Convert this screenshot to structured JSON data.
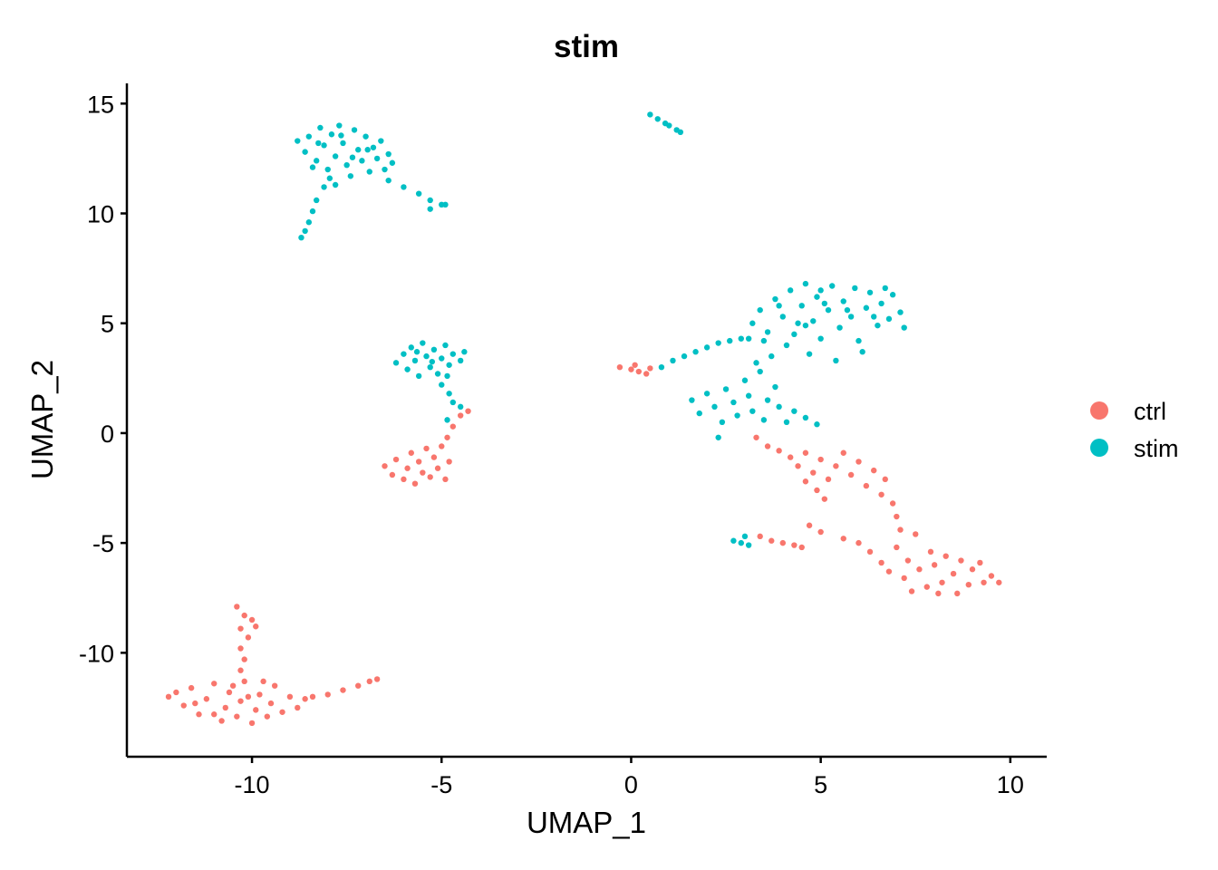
{
  "chart_data": {
    "type": "scatter",
    "title": "stim",
    "xlabel": "UMAP_1",
    "ylabel": "UMAP_2",
    "xlim": [
      -13.3,
      10.96
    ],
    "ylim": [
      -14.73,
      15.92
    ],
    "xticks": [
      -10,
      -5,
      0,
      5,
      10
    ],
    "yticks": [
      -10,
      -5,
      0,
      5,
      10,
      15
    ],
    "grid": false,
    "legend_position": "right",
    "series": [
      {
        "name": "ctrl",
        "color": "#F8766D",
        "points": [
          [
            -6.5,
            -1.5
          ],
          [
            -6.3,
            -1.9
          ],
          [
            -6.2,
            -1.2
          ],
          [
            -6.0,
            -2.1
          ],
          [
            -5.9,
            -1.6
          ],
          [
            -5.8,
            -0.9
          ],
          [
            -5.7,
            -2.3
          ],
          [
            -5.6,
            -1.3
          ],
          [
            -5.5,
            -1.8
          ],
          [
            -5.4,
            -0.7
          ],
          [
            -5.3,
            -2.0
          ],
          [
            -5.2,
            -1.1
          ],
          [
            -5.1,
            -1.6
          ],
          [
            -5.0,
            -0.6
          ],
          [
            -4.9,
            -2.1
          ],
          [
            -4.8,
            -1.3
          ],
          [
            -4.85,
            -0.2
          ],
          [
            -4.7,
            0.3
          ],
          [
            -4.5,
            0.8
          ],
          [
            -4.3,
            1.0
          ],
          [
            -0.3,
            3.0
          ],
          [
            0.0,
            2.9
          ],
          [
            0.2,
            2.8
          ],
          [
            0.4,
            2.7
          ],
          [
            0.1,
            3.1
          ],
          [
            0.5,
            2.95
          ],
          [
            3.3,
            -0.2
          ],
          [
            3.6,
            -0.6
          ],
          [
            3.9,
            -0.8
          ],
          [
            4.2,
            -1.1
          ],
          [
            4.4,
            -1.5
          ],
          [
            4.6,
            -0.9
          ],
          [
            4.8,
            -1.8
          ],
          [
            5.0,
            -1.2
          ],
          [
            5.2,
            -2.1
          ],
          [
            5.4,
            -1.5
          ],
          [
            5.6,
            -0.9
          ],
          [
            5.8,
            -1.9
          ],
          [
            6.0,
            -1.3
          ],
          [
            6.2,
            -2.4
          ],
          [
            6.4,
            -1.7
          ],
          [
            6.6,
            -2.8
          ],
          [
            6.7,
            -2.1
          ],
          [
            6.9,
            -3.2
          ],
          [
            5.1,
            -3.0
          ],
          [
            4.9,
            -2.6
          ],
          [
            4.6,
            -2.2
          ],
          [
            7.0,
            -3.8
          ],
          [
            7.1,
            -4.4
          ],
          [
            6.3,
            -5.4
          ],
          [
            6.6,
            -5.9
          ],
          [
            6.8,
            -6.3
          ],
          [
            7.0,
            -5.2
          ],
          [
            7.2,
            -6.6
          ],
          [
            7.3,
            -5.8
          ],
          [
            7.5,
            -4.6
          ],
          [
            7.6,
            -6.2
          ],
          [
            7.8,
            -7.0
          ],
          [
            7.9,
            -5.4
          ],
          [
            8.0,
            -6.0
          ],
          [
            8.2,
            -6.8
          ],
          [
            8.3,
            -5.6
          ],
          [
            8.5,
            -6.4
          ],
          [
            8.6,
            -7.3
          ],
          [
            8.7,
            -5.8
          ],
          [
            8.9,
            -6.9
          ],
          [
            9.0,
            -6.2
          ],
          [
            9.2,
            -5.9
          ],
          [
            9.3,
            -6.8
          ],
          [
            9.5,
            -6.5
          ],
          [
            9.7,
            -6.8
          ],
          [
            7.4,
            -7.2
          ],
          [
            8.1,
            -7.3
          ],
          [
            6.0,
            -5.0
          ],
          [
            5.6,
            -4.8
          ],
          [
            5.0,
            -4.5
          ],
          [
            4.7,
            -4.2
          ],
          [
            3.4,
            -4.7
          ],
          [
            3.7,
            -4.9
          ],
          [
            4.0,
            -5.0
          ],
          [
            4.3,
            -5.1
          ],
          [
            4.5,
            -5.2
          ],
          [
            -12.2,
            -12.0
          ],
          [
            -12.0,
            -11.8
          ],
          [
            -11.8,
            -12.4
          ],
          [
            -11.6,
            -11.6
          ],
          [
            -11.4,
            -12.8
          ],
          [
            -11.2,
            -12.1
          ],
          [
            -11.0,
            -11.4
          ],
          [
            -10.8,
            -13.1
          ],
          [
            -10.7,
            -12.5
          ],
          [
            -10.6,
            -11.8
          ],
          [
            -10.4,
            -12.9
          ],
          [
            -10.3,
            -12.2
          ],
          [
            -10.2,
            -11.3
          ],
          [
            -10.0,
            -13.2
          ],
          [
            -9.9,
            -12.6
          ],
          [
            -9.8,
            -11.9
          ],
          [
            -9.6,
            -12.9
          ],
          [
            -9.5,
            -12.3
          ],
          [
            -9.4,
            -11.5
          ],
          [
            -9.2,
            -12.7
          ],
          [
            -9.0,
            -12.0
          ],
          [
            -8.8,
            -12.5
          ],
          [
            -8.6,
            -12.1
          ],
          [
            -11.0,
            -12.8
          ],
          [
            -10.5,
            -11.5
          ],
          [
            -9.7,
            -11.3
          ],
          [
            -11.5,
            -12.3
          ],
          [
            -10.1,
            -12.0
          ],
          [
            -10.4,
            -7.9
          ],
          [
            -10.2,
            -8.3
          ],
          [
            -10.0,
            -8.5
          ],
          [
            -10.3,
            -8.9
          ],
          [
            -10.1,
            -9.3
          ],
          [
            -10.3,
            -9.8
          ],
          [
            -10.2,
            -10.3
          ],
          [
            -10.3,
            -10.8
          ],
          [
            -9.9,
            -8.8
          ],
          [
            -8.4,
            -12.0
          ],
          [
            -8.0,
            -11.9
          ],
          [
            -7.6,
            -11.7
          ],
          [
            -7.2,
            -11.5
          ],
          [
            -6.9,
            -11.3
          ],
          [
            -6.7,
            -11.2
          ]
        ]
      },
      {
        "name": "stim",
        "color": "#00BFC4",
        "points": [
          [
            -8.8,
            13.3
          ],
          [
            -8.6,
            12.8
          ],
          [
            -8.5,
            13.5
          ],
          [
            -8.3,
            12.4
          ],
          [
            -8.2,
            13.9
          ],
          [
            -8.1,
            13.1
          ],
          [
            -8.0,
            12.0
          ],
          [
            -7.9,
            13.6
          ],
          [
            -7.8,
            12.6
          ],
          [
            -7.7,
            14.0
          ],
          [
            -7.6,
            13.2
          ],
          [
            -7.5,
            12.2
          ],
          [
            -7.4,
            11.7
          ],
          [
            -7.3,
            13.8
          ],
          [
            -7.2,
            12.9
          ],
          [
            -7.1,
            12.4
          ],
          [
            -7.0,
            13.5
          ],
          [
            -6.9,
            11.9
          ],
          [
            -6.8,
            13.0
          ],
          [
            -6.7,
            12.5
          ],
          [
            -6.6,
            13.3
          ],
          [
            -6.5,
            12.0
          ],
          [
            -6.4,
            12.7
          ],
          [
            -6.3,
            12.3
          ],
          [
            -8.4,
            12.1
          ],
          [
            -7.95,
            11.6
          ],
          [
            -7.35,
            12.55
          ],
          [
            -6.95,
            12.9
          ],
          [
            -7.65,
            13.55
          ],
          [
            -8.25,
            13.2
          ],
          [
            -8.1,
            11.2
          ],
          [
            -8.3,
            10.6
          ],
          [
            -8.4,
            10.1
          ],
          [
            -8.5,
            9.6
          ],
          [
            -8.6,
            9.2
          ],
          [
            -8.7,
            8.9
          ],
          [
            -7.8,
            11.3
          ],
          [
            -6.4,
            11.5
          ],
          [
            -6.0,
            11.2
          ],
          [
            -5.6,
            10.9
          ],
          [
            -5.3,
            10.6
          ],
          [
            -5.0,
            10.4
          ],
          [
            -5.3,
            10.2
          ],
          [
            -4.9,
            10.4
          ],
          [
            -6.2,
            3.2
          ],
          [
            -6.0,
            3.6
          ],
          [
            -5.9,
            2.9
          ],
          [
            -5.8,
            3.9
          ],
          [
            -5.7,
            3.3
          ],
          [
            -5.6,
            2.6
          ],
          [
            -5.5,
            4.1
          ],
          [
            -5.4,
            3.5
          ],
          [
            -5.3,
            3.0
          ],
          [
            -5.2,
            3.8
          ],
          [
            -5.1,
            2.7
          ],
          [
            -5.0,
            3.4
          ],
          [
            -4.9,
            4.0
          ],
          [
            -4.8,
            3.1
          ],
          [
            -4.7,
            3.6
          ],
          [
            -4.5,
            3.3
          ],
          [
            -4.4,
            3.7
          ],
          [
            -5.65,
            3.7
          ],
          [
            -5.25,
            3.25
          ],
          [
            -4.85,
            2.6
          ],
          [
            -5.0,
            2.2
          ],
          [
            -4.8,
            1.8
          ],
          [
            -4.7,
            1.4
          ],
          [
            -4.5,
            1.2
          ],
          [
            -4.85,
            0.6
          ],
          [
            0.5,
            14.5
          ],
          [
            0.7,
            14.3
          ],
          [
            0.9,
            14.1
          ],
          [
            1.0,
            14.0
          ],
          [
            1.2,
            13.8
          ],
          [
            1.3,
            13.7
          ],
          [
            3.2,
            5.0
          ],
          [
            3.4,
            5.6
          ],
          [
            3.6,
            4.6
          ],
          [
            3.8,
            6.1
          ],
          [
            4.0,
            5.3
          ],
          [
            4.2,
            6.5
          ],
          [
            4.3,
            4.5
          ],
          [
            4.5,
            5.8
          ],
          [
            4.6,
            6.8
          ],
          [
            4.8,
            5.1
          ],
          [
            4.9,
            6.2
          ],
          [
            5.0,
            4.3
          ],
          [
            5.2,
            5.6
          ],
          [
            5.3,
            6.7
          ],
          [
            5.5,
            4.8
          ],
          [
            5.6,
            6.0
          ],
          [
            5.8,
            5.3
          ],
          [
            5.9,
            6.6
          ],
          [
            6.0,
            4.2
          ],
          [
            6.2,
            5.7
          ],
          [
            6.3,
            6.4
          ],
          [
            6.5,
            4.9
          ],
          [
            6.6,
            5.9
          ],
          [
            6.8,
            5.2
          ],
          [
            6.9,
            6.3
          ],
          [
            7.1,
            5.5
          ],
          [
            7.2,
            4.8
          ],
          [
            4.1,
            4.0
          ],
          [
            4.7,
            3.6
          ],
          [
            5.4,
            3.3
          ],
          [
            6.1,
            3.7
          ],
          [
            3.5,
            4.2
          ],
          [
            4.4,
            5.0
          ],
          [
            5.1,
            5.9
          ],
          [
            5.7,
            5.6
          ],
          [
            6.4,
            5.3
          ],
          [
            4.6,
            4.9
          ],
          [
            3.9,
            5.8
          ],
          [
            6.7,
            6.6
          ],
          [
            5.0,
            6.5
          ],
          [
            0.8,
            3.0
          ],
          [
            1.1,
            3.3
          ],
          [
            1.4,
            3.5
          ],
          [
            1.7,
            3.7
          ],
          [
            2.0,
            3.9
          ],
          [
            2.3,
            4.1
          ],
          [
            2.6,
            4.2
          ],
          [
            2.9,
            4.3
          ],
          [
            3.1,
            4.3
          ],
          [
            1.6,
            1.5
          ],
          [
            1.8,
            0.9
          ],
          [
            2.0,
            1.8
          ],
          [
            2.2,
            1.2
          ],
          [
            2.4,
            0.5
          ],
          [
            2.5,
            2.0
          ],
          [
            2.7,
            1.4
          ],
          [
            2.8,
            0.8
          ],
          [
            3.0,
            2.4
          ],
          [
            3.1,
            1.7
          ],
          [
            3.2,
            1.0
          ],
          [
            3.4,
            2.8
          ],
          [
            3.5,
            0.6
          ],
          [
            3.6,
            1.5
          ],
          [
            3.8,
            2.1
          ],
          [
            3.9,
            1.2
          ],
          [
            4.1,
            0.5
          ],
          [
            4.3,
            1.0
          ],
          [
            4.6,
            0.7
          ],
          [
            4.9,
            0.4
          ],
          [
            3.3,
            3.2
          ],
          [
            3.7,
            3.5
          ],
          [
            2.3,
            -0.2
          ],
          [
            2.7,
            -4.9
          ],
          [
            2.9,
            -5.0
          ],
          [
            3.0,
            -4.7
          ],
          [
            3.1,
            -5.1
          ]
        ]
      }
    ]
  }
}
